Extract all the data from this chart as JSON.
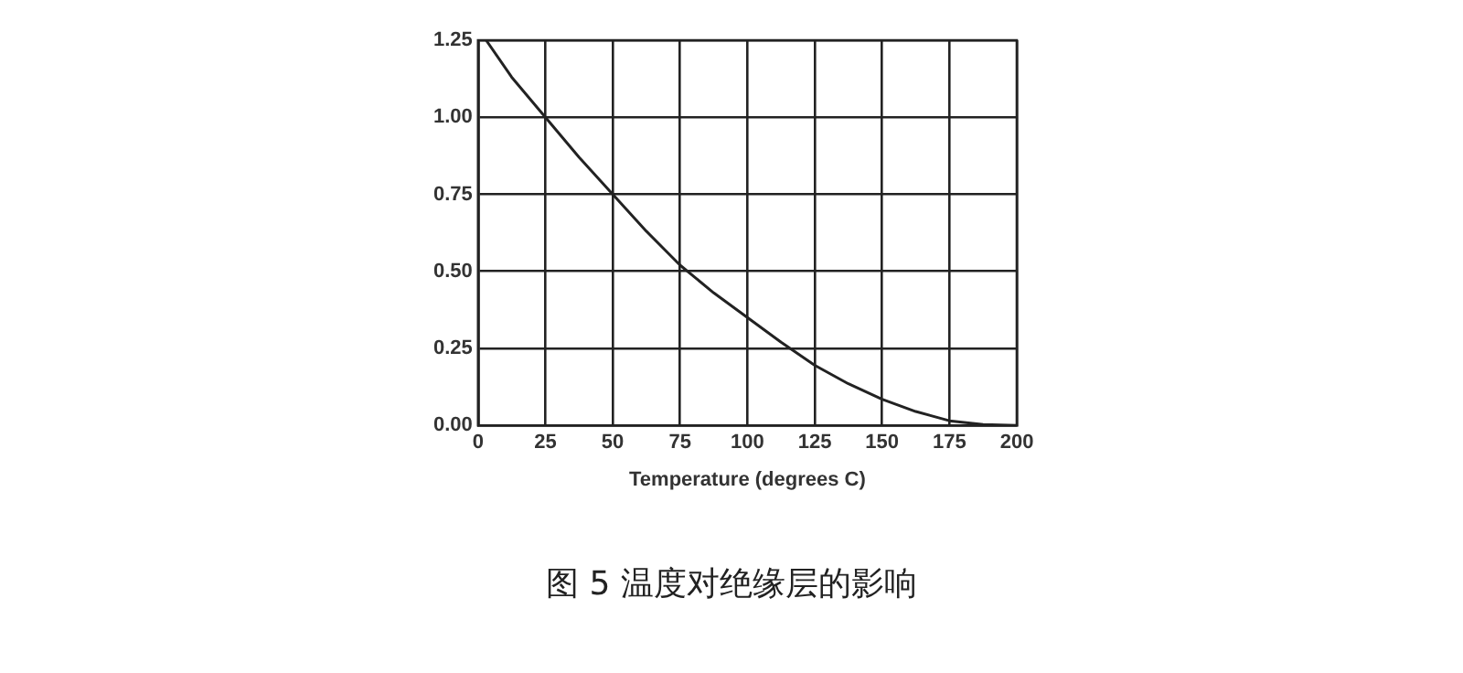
{
  "chart_data": {
    "type": "line",
    "xlabel": "Temperature (degrees C)",
    "annotations": [
      "图 5 温度对绝缘层的影响"
    ],
    "series": [
      {
        "color": "#222222",
        "x": [
          3,
          12.5,
          25,
          37.5,
          50,
          62.5,
          75,
          87.5,
          100,
          112.5,
          125,
          137.5,
          150,
          162.5,
          175,
          187.5,
          200
        ],
        "values": [
          1.25,
          1.13,
          1.0,
          0.87,
          0.75,
          0.63,
          0.52,
          0.43,
          0.35,
          0.27,
          0.195,
          0.135,
          0.085,
          0.045,
          0.015,
          0.003,
          0
        ]
      }
    ],
    "xlim": [
      0,
      200
    ],
    "xticks": [
      0,
      25,
      50,
      75,
      100,
      125,
      150,
      175,
      200
    ],
    "ylim": [
      0,
      1.25
    ],
    "yticks": [
      {
        "value": 0,
        "label": "0.00"
      },
      0.25,
      {
        "value": 0.5,
        "label": "0.50"
      },
      0.75,
      {
        "value": 1,
        "label": "1.00"
      },
      1.25
    ],
    "grid": true,
    "legend": false,
    "marker": "none",
    "line_style": "solid"
  }
}
